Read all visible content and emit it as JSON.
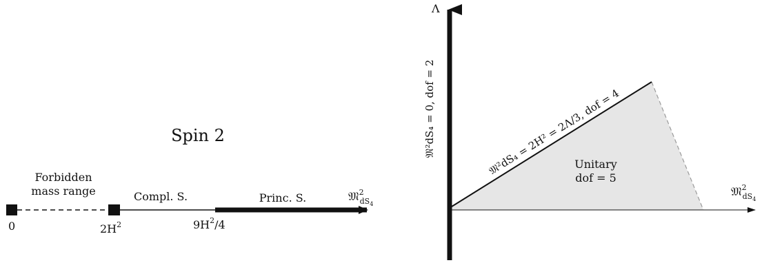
{
  "left_diagram": {
    "title": "Spin 2",
    "forbidden_label_line1": "Forbidden",
    "forbidden_label_line2": "mass range",
    "compl_label": "Compl. S.",
    "princ_label": "Princ. S.",
    "axis_label": "𝔐",
    "axis_label_sup": "2",
    "axis_label_sub": "dS",
    "axis_label_subsub": "4",
    "tick_0": "0",
    "tick_2h2_main": "2H",
    "tick_2h2_sup": "2",
    "tick_9h2_main": "9H",
    "tick_9h2_sup": "2",
    "tick_9h2_rest": "/4"
  },
  "right_diagram": {
    "y_axis_label": "Λ",
    "x_axis_label": "𝔐",
    "x_axis_label_sup": "2",
    "x_axis_label_sub": "dS",
    "x_axis_label_subsub": "4",
    "vertical_axis_text": "𝔐²dS₄ = 0, dof = 2",
    "diagonal_text": "𝔐²dS₄ = 2H² = 2Λ/3, dof = 4",
    "region_label_line1": "Unitary",
    "region_label_line2": "dof = 5"
  },
  "colors": {
    "ink": "#111111",
    "region_fill": "#e6e6e6",
    "dashed_edge": "#9a9a9a"
  }
}
